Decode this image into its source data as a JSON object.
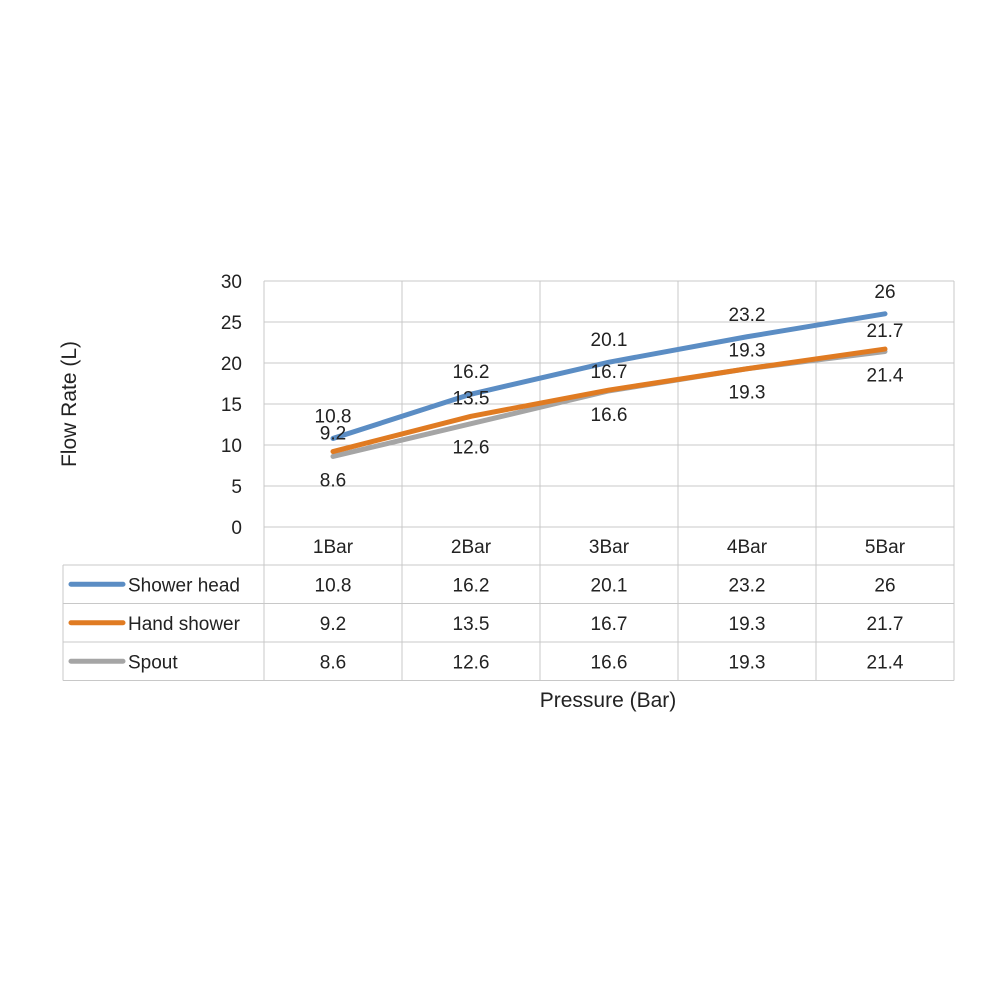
{
  "chart_data": {
    "type": "line",
    "title": "",
    "xlabel": "Pressure (Bar)",
    "ylabel": "Flow Rate (L)",
    "categories": [
      "1Bar",
      "2Bar",
      "3Bar",
      "4Bar",
      "5Bar"
    ],
    "ylim": [
      0,
      30
    ],
    "yticks": [
      0,
      5,
      10,
      15,
      20,
      25,
      30
    ],
    "grid": true,
    "legend": "data table below plot",
    "series": [
      {
        "name": "Shower head",
        "color": "#5B8DC4",
        "values": [
          10.8,
          16.2,
          20.1,
          23.2,
          26
        ]
      },
      {
        "name": "Hand shower",
        "color": "#E07B22",
        "values": [
          9.2,
          13.5,
          16.7,
          19.3,
          21.7
        ]
      },
      {
        "name": "Spout",
        "color": "#A5A5A5",
        "values": [
          8.6,
          12.6,
          16.6,
          19.3,
          21.4
        ]
      }
    ]
  }
}
